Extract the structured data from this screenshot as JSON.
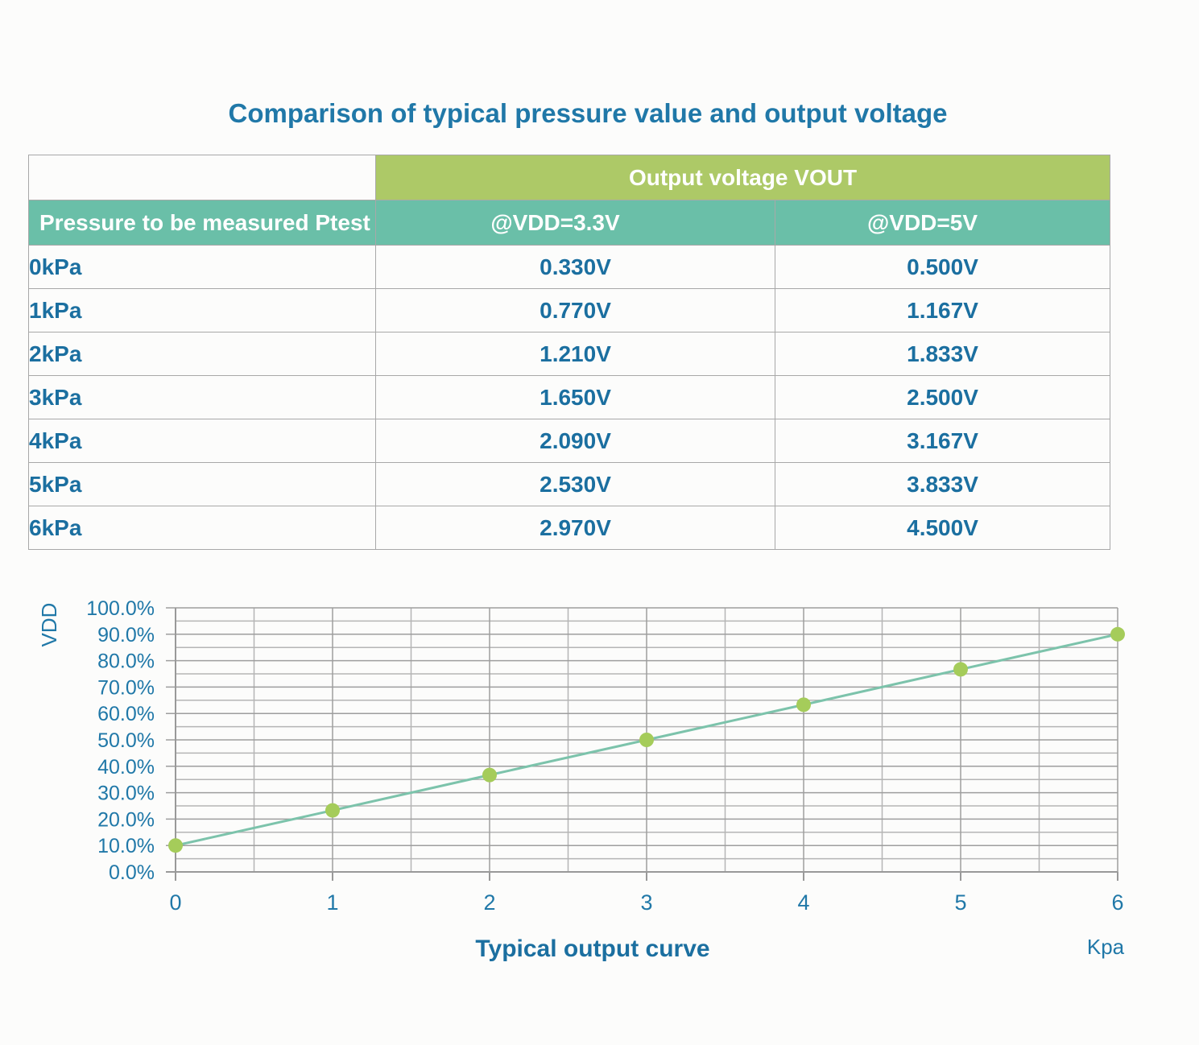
{
  "page_title": "Comparison of typical pressure value and output voltage",
  "table": {
    "group_header": "Output voltage VOUT",
    "row_axis_header": "Pressure to be measured Ptest",
    "col_headers": [
      "@VDD=3.3V",
      "@VDD=5V"
    ],
    "rows": [
      {
        "pressure": "0kPa",
        "vout_3v3": "0.330V",
        "vout_5v": "0.500V"
      },
      {
        "pressure": "1kPa",
        "vout_3v3": "0.770V",
        "vout_5v": "1.167V"
      },
      {
        "pressure": "2kPa",
        "vout_3v3": "1.210V",
        "vout_5v": "1.833V"
      },
      {
        "pressure": "3kPa",
        "vout_3v3": "1.650V",
        "vout_5v": "2.500V"
      },
      {
        "pressure": "4kPa",
        "vout_3v3": "2.090V",
        "vout_5v": "3.167V"
      },
      {
        "pressure": "5kPa",
        "vout_3v3": "2.530V",
        "vout_5v": "3.833V"
      },
      {
        "pressure": "6kPa",
        "vout_3v3": "2.970V",
        "vout_5v": "4.500V"
      }
    ]
  },
  "chart_data": {
    "type": "line",
    "title": "Typical output curve",
    "x_axis_unit": "Kpa",
    "y_axis_title": "VDD",
    "x": [
      0,
      1,
      2,
      3,
      4,
      5,
      6
    ],
    "y_percent": [
      10.0,
      23.3,
      36.7,
      50.0,
      63.3,
      76.7,
      90.0
    ],
    "xlim": [
      0,
      6
    ],
    "ylim": [
      0,
      100
    ],
    "x_tick_labels": [
      "0",
      "1",
      "2",
      "3",
      "4",
      "5",
      "6"
    ],
    "y_tick_labels": [
      "0.0%",
      "10.0%",
      "20.0%",
      "30.0%",
      "40.0%",
      "50.0%",
      "60.0%",
      "70.0%",
      "80.0%",
      "90.0%",
      "100.0%"
    ],
    "y_tick_step": 10,
    "y_minor_grid_step": 5,
    "x_tick_step": 1,
    "x_minor_grid_step": 0.5,
    "grid": true,
    "legend": "none"
  },
  "colors": {
    "title_text": "#2078a8",
    "table_text": "#1b6fa0",
    "header_green": "#adc967",
    "header_teal": "#6abfa8",
    "header_text": "#ffffff",
    "series_line": "#7cc3ab",
    "marker": "#a5cc5a",
    "grid_minor": "#b5b5b5",
    "grid_major": "#9e9e9e",
    "axis": "#999999",
    "table_border": "#a8a8a8"
  }
}
